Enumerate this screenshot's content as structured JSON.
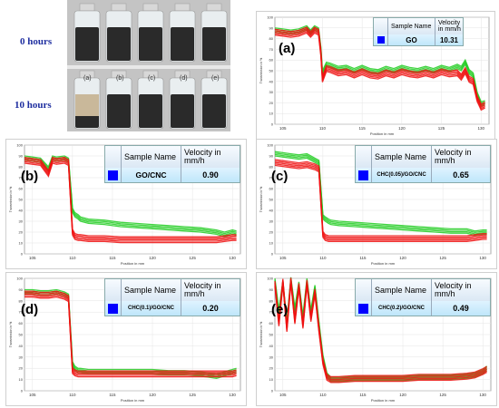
{
  "photo": {
    "row1_label": "0 hours",
    "row2_label": "10 hours",
    "vial_labels": [
      "(a)",
      "(b)",
      "(c)",
      "(d)",
      "(e)"
    ]
  },
  "colors": {
    "green": "#22cc22",
    "red": "#ee1111",
    "swatch": "#0000ff"
  },
  "chart_data": [
    {
      "type": "line",
      "panel_label": "(a)",
      "sample_header": "Sample Name",
      "velocity_header": "Velocity in mm/h",
      "sample_name": "GO",
      "velocity": "10.31",
      "xlabel": "Position in mm",
      "ylabel": "Transmission in %",
      "xlim": [
        104,
        131
      ],
      "ylim": [
        0,
        100
      ],
      "xticks": [
        "105",
        "110",
        "115",
        "120",
        "125",
        "130"
      ],
      "yticks": [
        "0",
        "10",
        "20",
        "30",
        "40",
        "50",
        "60",
        "70",
        "80",
        "90",
        "100"
      ],
      "series": [
        {
          "color": "green",
          "x": [
            104,
            105,
            106,
            107,
            108,
            108.5,
            109,
            109.5,
            109.8,
            110,
            110.5,
            111,
            112,
            113,
            114,
            115,
            116,
            117,
            118,
            119,
            120,
            121,
            122,
            123,
            124,
            125,
            126,
            127,
            127.5,
            128,
            128.5,
            129,
            129.5,
            130,
            130.5
          ],
          "values": [
            88,
            87,
            86,
            87,
            90,
            86,
            90,
            88,
            70,
            48,
            56,
            55,
            52,
            53,
            50,
            53,
            50,
            49,
            52,
            50,
            53,
            51,
            50,
            52,
            50,
            53,
            51,
            54,
            52,
            58,
            49,
            46,
            28,
            19,
            20
          ]
        },
        {
          "color": "red",
          "x": [
            104,
            105,
            106,
            107,
            108,
            108.5,
            109,
            109.5,
            109.8,
            110,
            110.5,
            111,
            112,
            113,
            114,
            115,
            116,
            117,
            118,
            119,
            120,
            121,
            122,
            123,
            124,
            125,
            126,
            127,
            127.5,
            128,
            128.5,
            129,
            129.5,
            130,
            130.5
          ],
          "values": [
            86,
            85,
            84,
            85,
            88,
            84,
            88,
            86,
            66,
            42,
            52,
            51,
            48,
            49,
            46,
            49,
            46,
            45,
            48,
            46,
            49,
            47,
            46,
            48,
            46,
            49,
            47,
            48,
            44,
            50,
            42,
            40,
            24,
            16,
            18
          ]
        }
      ]
    },
    {
      "type": "line",
      "panel_label": "(b)",
      "sample_header": "Sample Name",
      "velocity_header": "Velocity in mm/h",
      "sample_name": "GO/CNC",
      "velocity": "0.90",
      "xlabel": "Position in mm",
      "ylabel": "Transmission in %",
      "xlim": [
        104,
        131
      ],
      "ylim": [
        0,
        100
      ],
      "xticks": [
        "105",
        "110",
        "115",
        "120",
        "125",
        "130"
      ],
      "yticks": [
        "0",
        "10",
        "20",
        "30",
        "40",
        "50",
        "60",
        "70",
        "80",
        "90",
        "100"
      ],
      "series": [
        {
          "color": "green",
          "x": [
            104,
            105,
            106,
            107,
            107.5,
            108,
            109,
            109.5,
            110,
            110.3,
            110.7,
            111,
            112,
            114,
            116,
            118,
            120,
            122,
            124,
            126,
            128,
            129,
            130,
            130.5
          ],
          "values": [
            88,
            87,
            86,
            78,
            88,
            87,
            88,
            86,
            40,
            36,
            34,
            32,
            30,
            29,
            27,
            26,
            25,
            24,
            23,
            22,
            20,
            18,
            20,
            19
          ]
        },
        {
          "color": "red",
          "x": [
            104,
            105,
            106,
            107,
            107.5,
            108,
            109,
            109.5,
            110,
            110.3,
            110.7,
            111,
            112,
            114,
            116,
            118,
            120,
            122,
            124,
            126,
            128,
            129,
            130,
            130.5
          ],
          "values": [
            86,
            85,
            84,
            74,
            86,
            85,
            86,
            84,
            20,
            16,
            15,
            15,
            14,
            14,
            13,
            13,
            13,
            13,
            13,
            13,
            13,
            14,
            15,
            15
          ]
        }
      ]
    },
    {
      "type": "line",
      "panel_label": "(c)",
      "sample_header": "Sample Name",
      "velocity_header": "Velocity in mm/h",
      "sample_name": "CHC(0.05)/GO/CNC",
      "velocity": "0.65",
      "xlabel": "Position in mm",
      "ylabel": "Transmission in %",
      "xlim": [
        104,
        131
      ],
      "ylim": [
        0,
        100
      ],
      "xticks": [
        "105",
        "110",
        "115",
        "120",
        "125",
        "130"
      ],
      "yticks": [
        "0",
        "10",
        "20",
        "30",
        "40",
        "50",
        "60",
        "70",
        "80",
        "90",
        "100"
      ],
      "series": [
        {
          "color": "green",
          "x": [
            104,
            105,
            106,
            107,
            108,
            109,
            109.5,
            110,
            110.3,
            110.7,
            111,
            112,
            114,
            116,
            118,
            120,
            122,
            124,
            126,
            128,
            129,
            130,
            130.5
          ],
          "values": [
            92,
            91,
            90,
            89,
            90,
            86,
            84,
            34,
            32,
            30,
            29,
            28,
            27,
            26,
            25,
            24,
            23,
            22,
            21,
            21,
            19,
            20,
            20
          ]
        },
        {
          "color": "red",
          "x": [
            104,
            105,
            106,
            107,
            108,
            109,
            109.5,
            110,
            110.3,
            110.7,
            111,
            112,
            114,
            116,
            118,
            120,
            122,
            124,
            126,
            128,
            129,
            130,
            130.5
          ],
          "values": [
            84,
            83,
            82,
            81,
            82,
            80,
            78,
            18,
            15,
            14,
            14,
            14,
            14,
            14,
            14,
            14,
            14,
            14,
            14,
            14,
            15,
            16,
            16
          ]
        }
      ]
    },
    {
      "type": "line",
      "panel_label": "(d)",
      "sample_header": "Sample Name",
      "velocity_header": "Velocity in mm/h",
      "sample_name": "CHC(0.1)/GO/CNC",
      "velocity": "0.20",
      "xlabel": "Position in mm",
      "ylabel": "Transmission in %",
      "xlim": [
        104,
        131
      ],
      "ylim": [
        0,
        100
      ],
      "xticks": [
        "105",
        "110",
        "115",
        "120",
        "125",
        "130"
      ],
      "yticks": [
        "0",
        "10",
        "20",
        "30",
        "40",
        "50",
        "60",
        "70",
        "80",
        "90",
        "100"
      ],
      "series": [
        {
          "color": "green",
          "x": [
            104,
            105,
            106,
            107,
            108,
            109,
            109.5,
            110,
            110.3,
            110.7,
            111,
            112,
            114,
            116,
            118,
            120,
            122,
            124,
            126,
            127,
            128,
            129,
            130,
            130.5
          ],
          "values": [
            88,
            88,
            87,
            87,
            88,
            86,
            84,
            24,
            20,
            18,
            18,
            17,
            17,
            17,
            17,
            17,
            16,
            16,
            15,
            14,
            13,
            15,
            17,
            18
          ]
        },
        {
          "color": "red",
          "x": [
            104,
            105,
            106,
            107,
            108,
            109,
            109.5,
            110,
            110.3,
            110.7,
            111,
            112,
            114,
            116,
            118,
            120,
            122,
            124,
            126,
            127,
            128,
            129,
            130,
            130.5
          ],
          "values": [
            86,
            86,
            85,
            85,
            86,
            84,
            82,
            18,
            16,
            15,
            15,
            15,
            15,
            15,
            15,
            15,
            15,
            15,
            15,
            15,
            15,
            15,
            15,
            16
          ]
        }
      ]
    },
    {
      "type": "line",
      "panel_label": "(e)",
      "sample_header": "Sample Name",
      "velocity_header": "Velocity in mm/h",
      "sample_name": "CHC(0.2)/GO/CNC",
      "velocity": "0.49",
      "xlabel": "Position in mm",
      "ylabel": "Transmission in %",
      "xlim": [
        104,
        131
      ],
      "ylim": [
        0,
        100
      ],
      "xticks": [
        "105",
        "110",
        "115",
        "120",
        "125",
        "130"
      ],
      "yticks": [
        "0",
        "10",
        "20",
        "30",
        "40",
        "50",
        "60",
        "70",
        "80",
        "90",
        "100"
      ],
      "series": [
        {
          "color": "green",
          "x": [
            104,
            104.5,
            105,
            105.5,
            106,
            106.5,
            107,
            107.5,
            108,
            108.5,
            109,
            109.5,
            110,
            110.5,
            111,
            112,
            114,
            116,
            118,
            120,
            122,
            124,
            126,
            128,
            129,
            130,
            130.5
          ],
          "values": [
            98,
            70,
            96,
            60,
            99,
            72,
            95,
            65,
            98,
            70,
            92,
            60,
            30,
            14,
            10,
            10,
            11,
            11,
            11,
            11,
            12,
            12,
            12,
            13,
            14,
            17,
            20
          ]
        },
        {
          "color": "red",
          "x": [
            104,
            104.5,
            105,
            105.5,
            106,
            106.5,
            107,
            107.5,
            108,
            108.5,
            109,
            109.5,
            110,
            110.5,
            111,
            112,
            114,
            116,
            118,
            120,
            122,
            124,
            126,
            128,
            129,
            130,
            130.5
          ],
          "values": [
            95,
            60,
            97,
            55,
            98,
            62,
            93,
            58,
            96,
            64,
            88,
            55,
            26,
            12,
            10,
            10,
            11,
            11,
            11,
            11,
            12,
            12,
            12,
            13,
            14,
            17,
            19
          ]
        }
      ]
    }
  ]
}
